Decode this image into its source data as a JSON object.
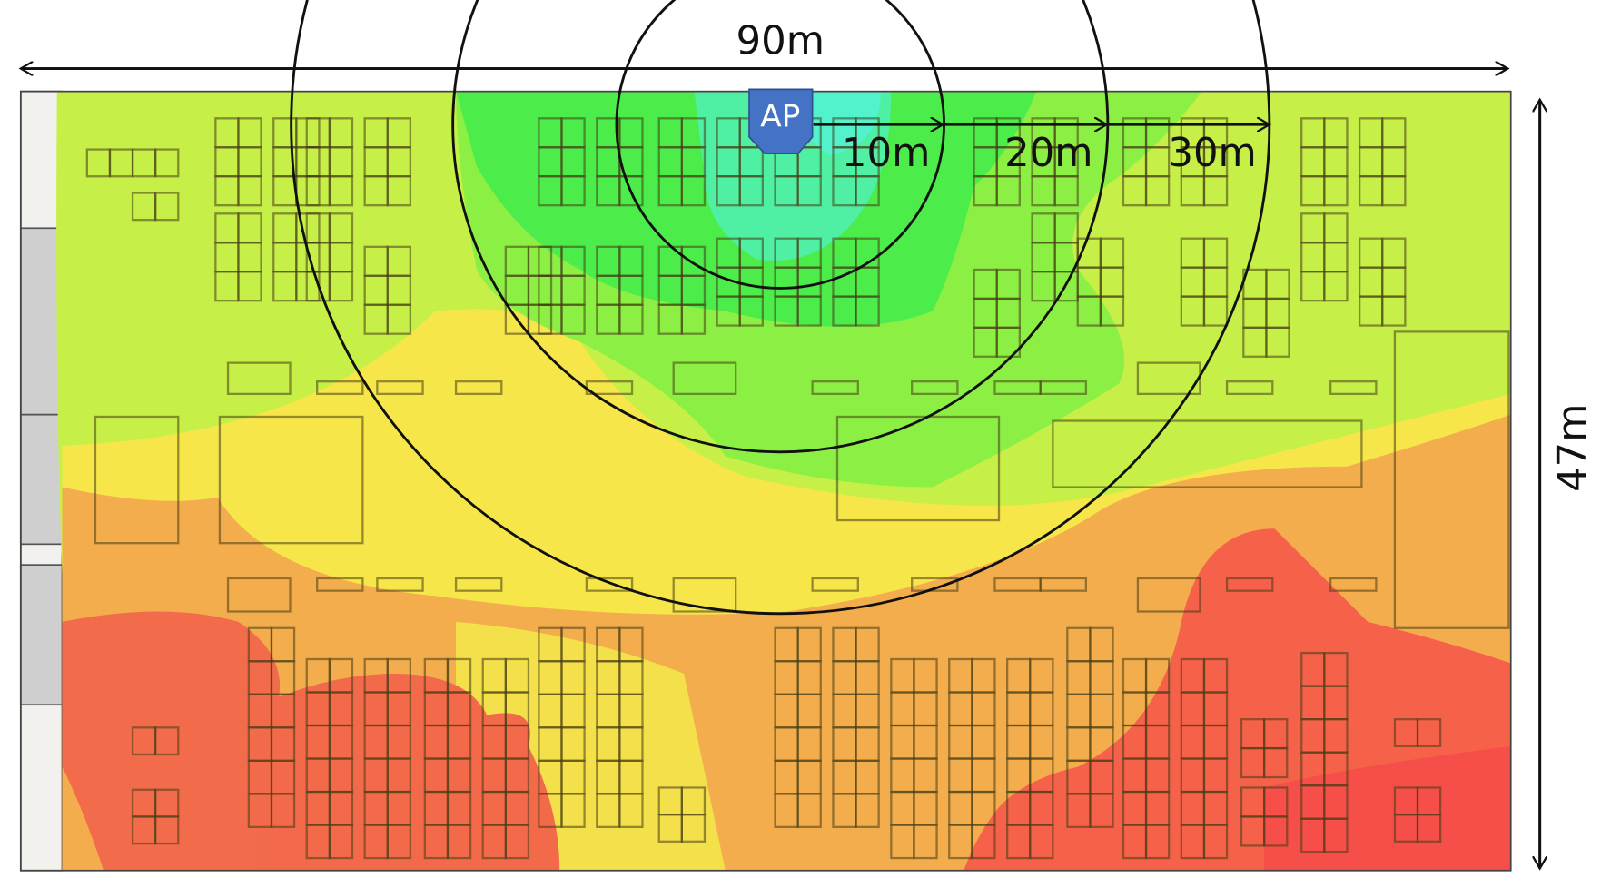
{
  "dimensions": {
    "width": "90m",
    "height": "47m"
  },
  "access_point": {
    "label": "AP"
  },
  "rings": [
    {
      "label": "10m"
    },
    {
      "label": "20m"
    },
    {
      "label": "30m"
    }
  ]
}
